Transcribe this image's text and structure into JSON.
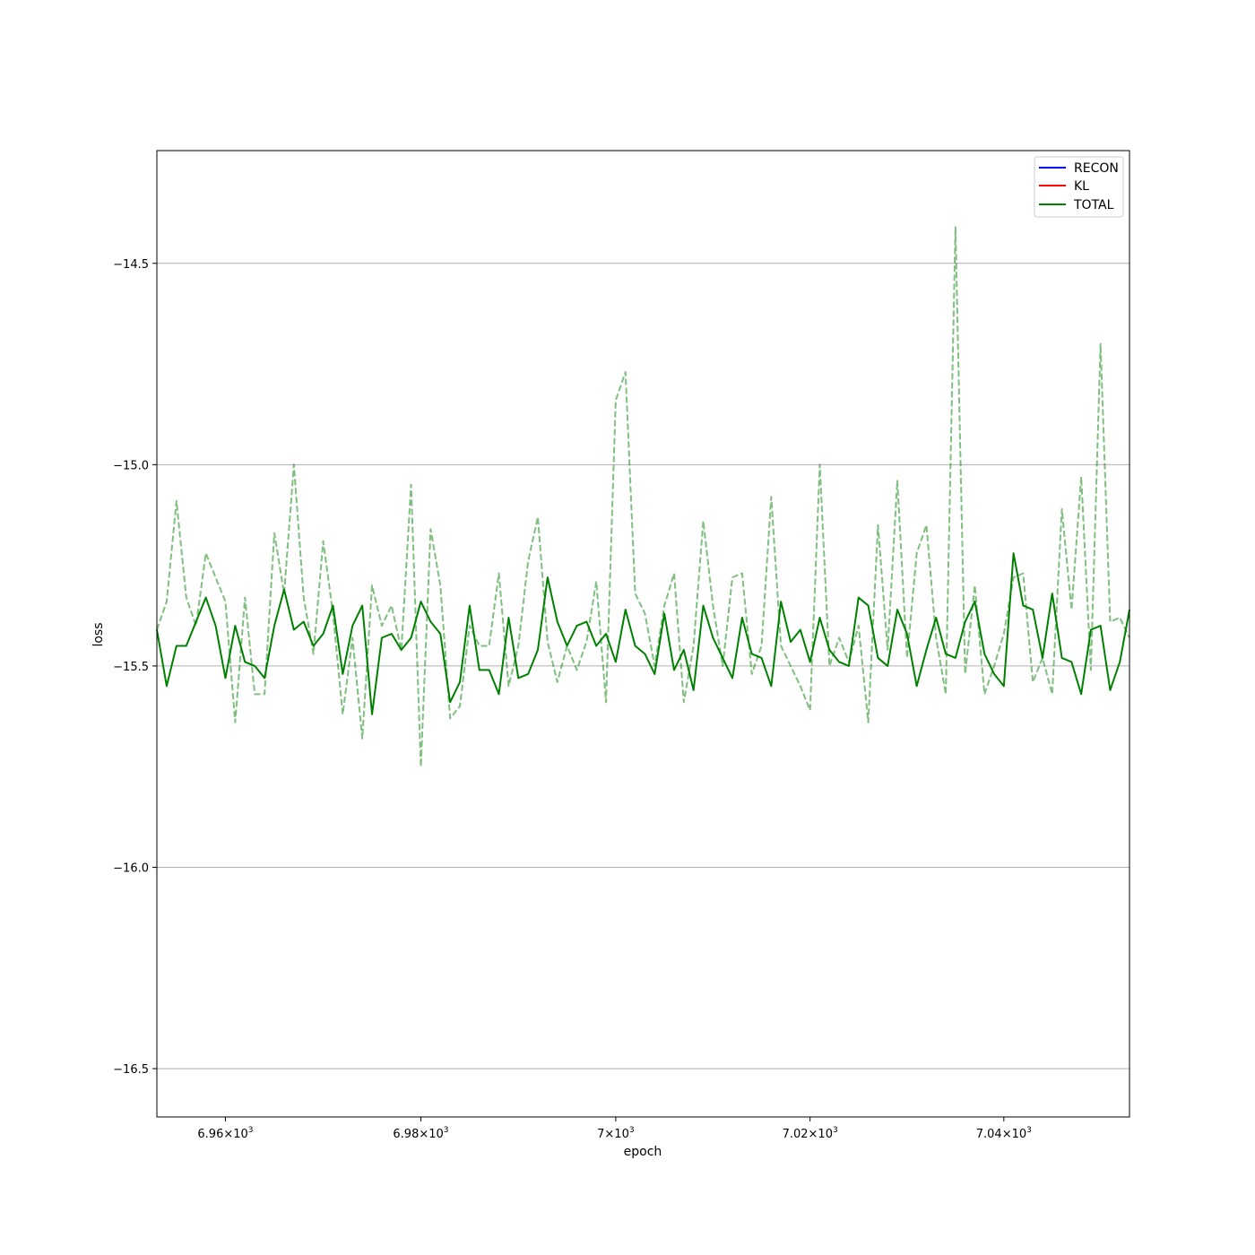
{
  "chart_data": {
    "type": "line",
    "title": "",
    "xlabel": "epoch",
    "ylabel": "loss",
    "xscale": "log",
    "xlim": [
      6953,
      7053
    ],
    "ylim": [
      -16.62,
      -14.22
    ],
    "grid": "y",
    "legend_position": "top-right",
    "x_ticks": [
      6960,
      6980,
      7000,
      7020,
      7040
    ],
    "x_tick_labels": [
      {
        "mantissa": "6.96",
        "base": "10",
        "exp": "3"
      },
      {
        "mantissa": "6.98",
        "base": "10",
        "exp": "3"
      },
      {
        "mantissa": "7",
        "base": "10",
        "exp": "3"
      },
      {
        "mantissa": "7.02",
        "base": "10",
        "exp": "3"
      },
      {
        "mantissa": "7.04",
        "base": "10",
        "exp": "3"
      }
    ],
    "y_ticks": [
      -14.5,
      -15.0,
      -15.5,
      -16.0,
      -16.5
    ],
    "y_tick_labels": [
      "−14.5",
      "−15.0",
      "−15.5",
      "−16.0",
      "−16.5"
    ],
    "legend": [
      {
        "name": "RECON",
        "color": "#0000ff"
      },
      {
        "name": "KL",
        "color": "#ff0000"
      },
      {
        "name": "TOTAL",
        "color": "#008000"
      }
    ],
    "series": [
      {
        "name": "TOTAL",
        "style": "solid",
        "color": "#008000",
        "x_start": 6953,
        "x_step": 1,
        "values": [
          -15.41,
          -15.55,
          -15.45,
          -15.45,
          -15.39,
          -15.33,
          -15.4,
          -15.53,
          -15.4,
          -15.49,
          -15.5,
          -15.53,
          -15.4,
          -15.31,
          -15.41,
          -15.39,
          -15.45,
          -15.42,
          -15.35,
          -15.52,
          -15.4,
          -15.35,
          -15.62,
          -15.43,
          -15.42,
          -15.46,
          -15.43,
          -15.34,
          -15.39,
          -15.42,
          -15.59,
          -15.54,
          -15.35,
          -15.51,
          -15.51,
          -15.57,
          -15.38,
          -15.53,
          -15.52,
          -15.46,
          -15.28,
          -15.39,
          -15.45,
          -15.4,
          -15.39,
          -15.45,
          -15.42,
          -15.49,
          -15.36,
          -15.45,
          -15.47,
          -15.52,
          -15.37,
          -15.51,
          -15.46,
          -15.56,
          -15.35,
          -15.43,
          -15.48,
          -15.53,
          -15.38,
          -15.47,
          -15.48,
          -15.55,
          -15.34,
          -15.44,
          -15.41,
          -15.49,
          -15.38,
          -15.46,
          -15.49,
          -15.5,
          -15.33,
          -15.35,
          -15.48,
          -15.5,
          -15.36,
          -15.42,
          -15.55,
          -15.46,
          -15.38,
          -15.47,
          -15.48,
          -15.39,
          -15.34,
          -15.47,
          -15.52,
          -15.55,
          -15.22,
          -15.35,
          -15.36,
          -15.48,
          -15.32,
          -15.48,
          -15.49,
          -15.57,
          -15.41,
          -15.4,
          -15.56,
          -15.49,
          -15.36
        ]
      },
      {
        "name": "TOTAL (raw)",
        "style": "dashed",
        "color": "#008000",
        "opacity": 0.5,
        "x_start": 6953,
        "x_step": 1,
        "values": [
          -15.41,
          -15.34,
          -15.09,
          -15.33,
          -15.4,
          -15.22,
          -15.28,
          -15.34,
          -15.64,
          -15.33,
          -15.57,
          -15.57,
          -15.17,
          -15.32,
          -15.0,
          -15.33,
          -15.47,
          -15.19,
          -15.37,
          -15.62,
          -15.43,
          -15.68,
          -15.3,
          -15.4,
          -15.35,
          -15.46,
          -15.05,
          -15.75,
          -15.16,
          -15.3,
          -15.63,
          -15.6,
          -15.4,
          -15.45,
          -15.45,
          -15.27,
          -15.55,
          -15.45,
          -15.24,
          -15.13,
          -15.44,
          -15.54,
          -15.45,
          -15.51,
          -15.44,
          -15.29,
          -15.59,
          -14.84,
          -14.77,
          -15.32,
          -15.37,
          -15.5,
          -15.35,
          -15.27,
          -15.59,
          -15.45,
          -15.14,
          -15.35,
          -15.5,
          -15.28,
          -15.27,
          -15.52,
          -15.45,
          -15.08,
          -15.45,
          -15.5,
          -15.55,
          -15.61,
          -15.0,
          -15.5,
          -15.43,
          -15.49,
          -15.4,
          -15.64,
          -15.15,
          -15.46,
          -15.04,
          -15.48,
          -15.22,
          -15.15,
          -15.43,
          -15.57,
          -14.41,
          -15.52,
          -15.3,
          -15.57,
          -15.5,
          -15.42,
          -15.28,
          -15.27,
          -15.54,
          -15.48,
          -15.57,
          -15.11,
          -15.36,
          -15.03,
          -15.51,
          -14.7,
          -15.39,
          -15.38,
          -15.43
        ]
      }
    ]
  }
}
